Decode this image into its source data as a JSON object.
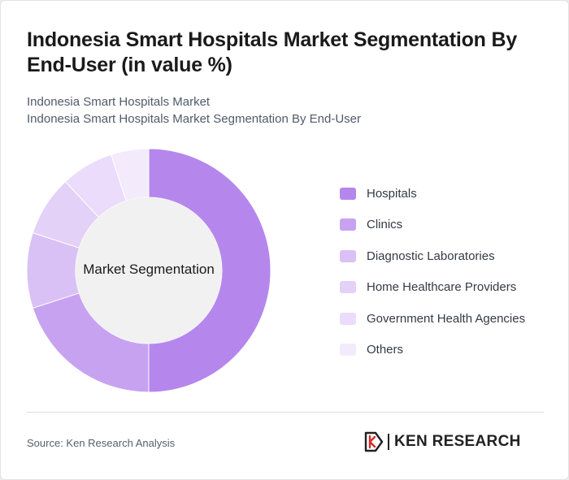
{
  "header": {
    "title": "Indonesia Smart Hospitals Market Segmentation By End-User (in value %)",
    "subtitle_line1": "Indonesia Smart Hospitals Market",
    "subtitle_line2": "Indonesia Smart Hospitals Market Segmentation By End-User"
  },
  "chart_data": {
    "type": "pie",
    "variant": "donut",
    "center_label": "Market Segmentation",
    "legend_position": "right",
    "categories": [
      "Hospitals",
      "Clinics",
      "Diagnostic Laboratories",
      "Home Healthcare Providers",
      "Government Health Agencies",
      "Others"
    ],
    "values": [
      50,
      20,
      10,
      8,
      7,
      5
    ],
    "colors": [
      "#b587ec",
      "#c7a2f1",
      "#d9c1f6",
      "#e3d1f8",
      "#eadcfa",
      "#f3ebfc"
    ]
  },
  "footer": {
    "source": "Source: Ken Research Analysis",
    "logo_text": "KEN RESEARCH",
    "logo_icon": "ken-research-k-icon"
  }
}
